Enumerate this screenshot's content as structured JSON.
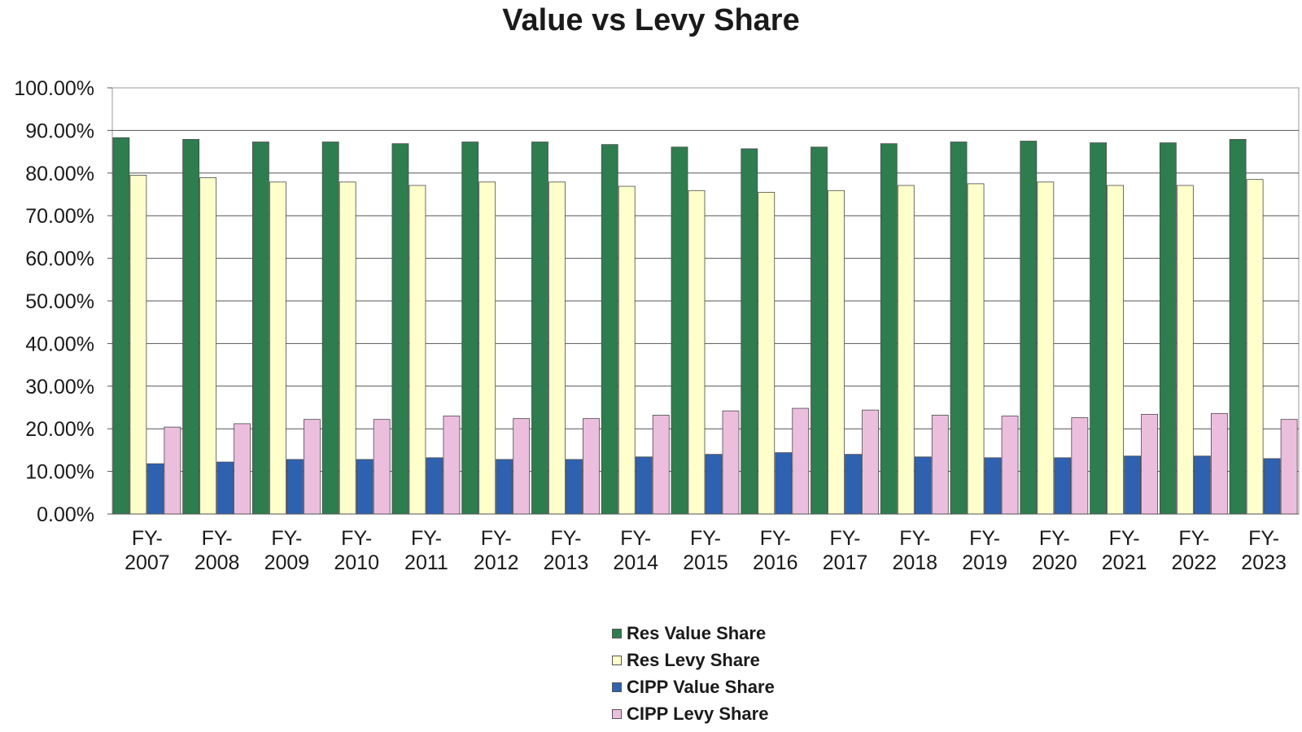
{
  "chart_data": {
    "type": "bar",
    "title": "Value vs Levy Share",
    "xlabel": "",
    "ylabel": "",
    "ylim": [
      0,
      100
    ],
    "yticks": [
      "0.00%",
      "10.00%",
      "20.00%",
      "30.00%",
      "40.00%",
      "50.00%",
      "60.00%",
      "70.00%",
      "80.00%",
      "90.00%",
      "100.00%"
    ],
    "categories": [
      [
        "FY-",
        "2007"
      ],
      [
        "FY-",
        "2008"
      ],
      [
        "FY-",
        "2009"
      ],
      [
        "FY-",
        "2010"
      ],
      [
        "FY-",
        "2011"
      ],
      [
        "FY-",
        "2012"
      ],
      [
        "FY-",
        "2013"
      ],
      [
        "FY-",
        "2014"
      ],
      [
        "FY-",
        "2015"
      ],
      [
        "FY-",
        "2016"
      ],
      [
        "FY-",
        "2017"
      ],
      [
        "FY-",
        "2018"
      ],
      [
        "FY-",
        "2019"
      ],
      [
        "FY-",
        "2020"
      ],
      [
        "FY-",
        "2021"
      ],
      [
        "FY-",
        "2022"
      ],
      [
        "FY-",
        "2023"
      ]
    ],
    "series": [
      {
        "name": "Res Value Share",
        "color": "#2e7d4f",
        "values": [
          88.3,
          87.9,
          87.3,
          87.3,
          86.9,
          87.3,
          87.3,
          86.7,
          86.1,
          85.7,
          86.1,
          86.9,
          87.3,
          87.5,
          87.1,
          87.1,
          87.9
        ]
      },
      {
        "name": "Res Levy Share",
        "color": "#ffffcc",
        "values": [
          79.5,
          78.9,
          77.9,
          77.9,
          77.1,
          77.9,
          77.9,
          76.9,
          75.9,
          75.5,
          75.9,
          77.1,
          77.5,
          77.9,
          77.1,
          77.1,
          78.5
        ]
      },
      {
        "name": "CIPP Value Share",
        "color": "#2e62b0",
        "values": [
          11.8,
          12.2,
          12.8,
          12.8,
          13.2,
          12.8,
          12.8,
          13.4,
          14.0,
          14.4,
          14.0,
          13.4,
          13.2,
          13.2,
          13.6,
          13.6,
          13.0
        ]
      },
      {
        "name": "CIPP Levy Share",
        "color": "#ecbede",
        "values": [
          20.4,
          21.2,
          22.2,
          22.2,
          23.0,
          22.4,
          22.4,
          23.2,
          24.2,
          24.8,
          24.4,
          23.2,
          23.0,
          22.6,
          23.4,
          23.6,
          22.2
        ]
      }
    ],
    "grid": true,
    "legend_position": "bottom-center"
  }
}
